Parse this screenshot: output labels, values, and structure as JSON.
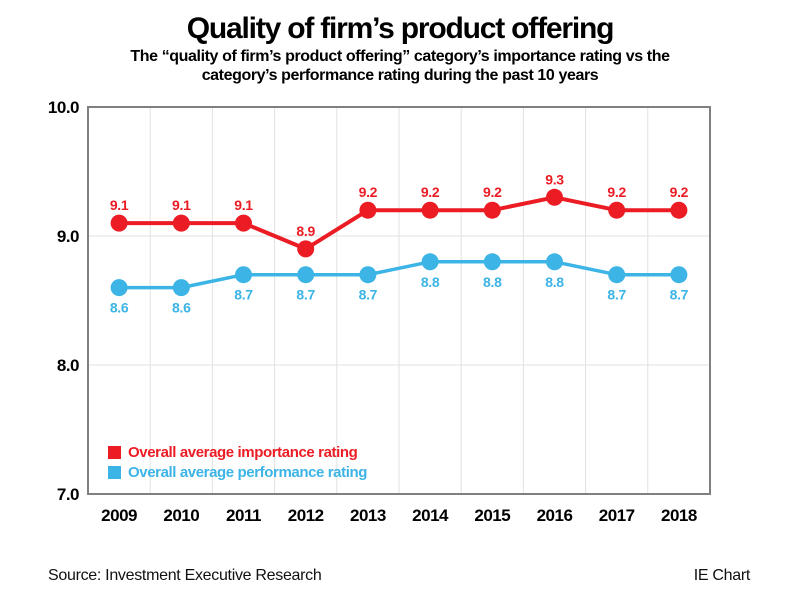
{
  "page": {
    "title": "Quality of firm’s product offering",
    "subtitle_line1": "The “quality of firm’s product offering” category’s importance rating vs the",
    "subtitle_line2": "category’s performance rating during the past 10 years",
    "footer": {
      "source": "Source: Investment Executive Research",
      "credit": "IE Chart"
    }
  },
  "chart_data": {
    "type": "line",
    "title": "Quality of firm’s product offering",
    "categories": [
      "2009",
      "2010",
      "2011",
      "2012",
      "2013",
      "2014",
      "2015",
      "2016",
      "2017",
      "2018"
    ],
    "series": [
      {
        "name": "Overall average importance rating",
        "color": "#ec1c24",
        "values": [
          9.1,
          9.1,
          9.1,
          8.9,
          9.2,
          9.2,
          9.2,
          9.3,
          9.2,
          9.2
        ],
        "label_position": "above"
      },
      {
        "name": "Overall average performance rating",
        "color": "#3cb4e5",
        "values": [
          8.6,
          8.6,
          8.7,
          8.7,
          8.7,
          8.8,
          8.8,
          8.8,
          8.7,
          8.7
        ],
        "label_position": "below"
      }
    ],
    "ylim": [
      7.0,
      10.0
    ],
    "yticks": [
      10.0,
      9.0,
      8.0,
      7.0
    ],
    "xlabel": "",
    "ylabel": "",
    "grid": true,
    "gridline_color": "#e2e2e2",
    "border_color": "#808080",
    "legend_position": "inside-bottom-left"
  }
}
